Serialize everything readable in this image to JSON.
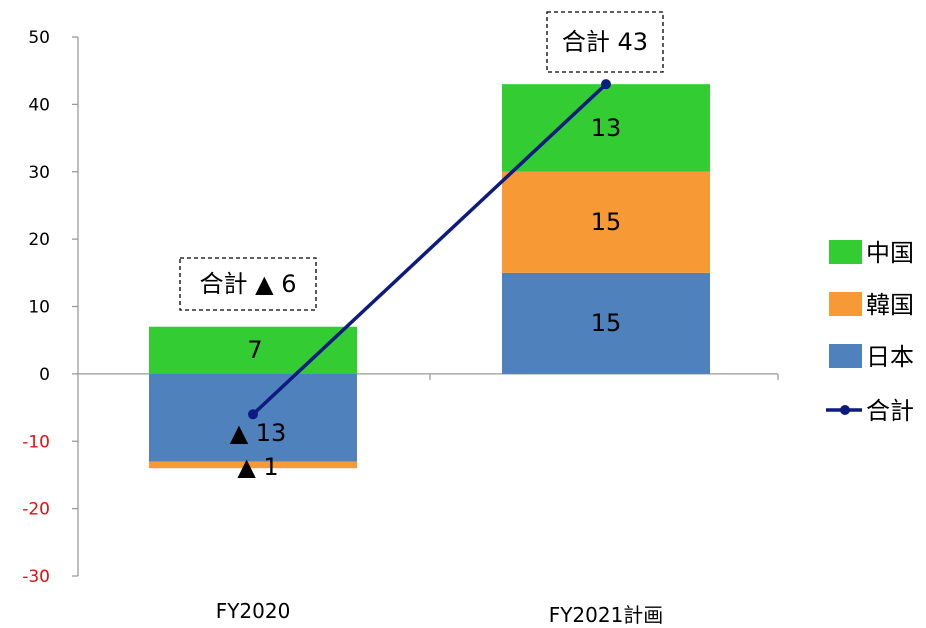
{
  "chart_data": {
    "type": "bar",
    "stacked": true,
    "categories": [
      "FY2020",
      "FY2021計画"
    ],
    "series": [
      {
        "name": "日本",
        "values": [
          -13,
          15
        ],
        "color": "#4f81bd",
        "labels": [
          "▲ 13",
          "15"
        ]
      },
      {
        "name": "韓国",
        "values": [
          -1,
          15
        ],
        "color": "#f79a35",
        "labels": [
          "▲ 1",
          "15"
        ]
      },
      {
        "name": "中国",
        "values": [
          7,
          13
        ],
        "color": "#33cc33",
        "labels": [
          "7",
          "13"
        ]
      }
    ],
    "line_series": {
      "name": "合計",
      "values": [
        -6,
        43
      ],
      "color": "#0d1a80"
    },
    "total_labels": [
      "合計 ▲ 6",
      "合計 43"
    ],
    "yticks": [
      50,
      40,
      30,
      20,
      10,
      0,
      -10,
      -20,
      -30
    ],
    "ytick_labels": [
      "50",
      "40",
      "30",
      "20",
      "10",
      "0",
      "-10",
      "-20",
      "-30"
    ],
    "ylim": [
      -30,
      50
    ],
    "negative_tick_color": "#e01010",
    "legend_order": [
      "中国",
      "韓国",
      "日本",
      "合計"
    ],
    "legend_position": "right",
    "grid": false
  }
}
